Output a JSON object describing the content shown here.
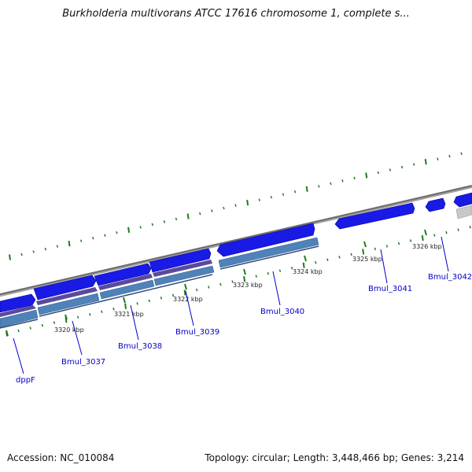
{
  "title": "Burkholderia multivorans ATCC 17616 chromosome 1, complete s...",
  "footer": {
    "accession": "Accession: NC_010084",
    "summary": "Topology: circular; Length: 3,448,466 bp; Genes: 3,214"
  },
  "colors": {
    "gene_blue": "#1a1ae6",
    "gene_purple": "#5a4a9c",
    "cds_steel": "#4f82b8",
    "backbone_gray": "#8a8a8a",
    "tick_green": "#1f7a1f",
    "label_blue": "#0000cc",
    "other_gray": "#c8c8c8"
  },
  "scale_ticks": [
    {
      "label": "3320 kbp"
    },
    {
      "label": "3321 kbp"
    },
    {
      "label": "3322 kbp"
    },
    {
      "label": "3323 kbp"
    },
    {
      "label": "3324 kbp"
    },
    {
      "label": "3325 kbp"
    },
    {
      "label": "3326 kbp"
    }
  ],
  "genes": [
    {
      "name": "dppF"
    },
    {
      "name": "Bmul_3037"
    },
    {
      "name": "Bmul_3038"
    },
    {
      "name": "Bmul_3039"
    },
    {
      "name": "Bmul_3040"
    },
    {
      "name": "Bmul_3041"
    },
    {
      "name": "Bmul_3042"
    }
  ]
}
